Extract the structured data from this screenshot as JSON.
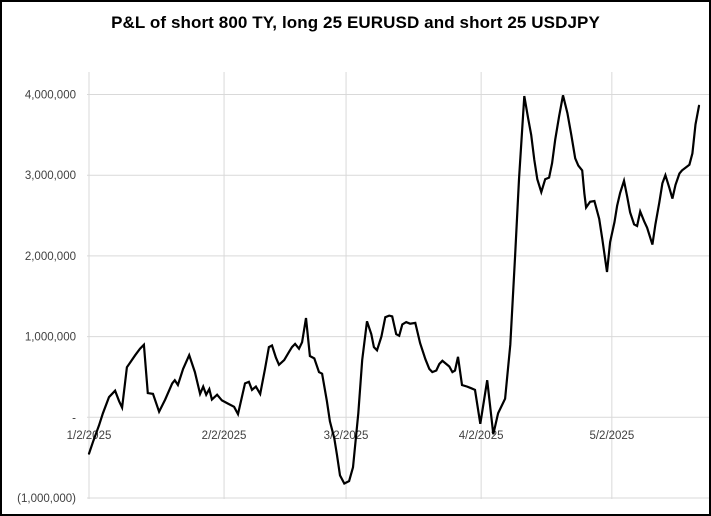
{
  "chart_data": {
    "type": "line",
    "title": "P&L of short 800 TY, long 25 EURUSD and short 25 USDJPY",
    "legend": "none",
    "grid": "on",
    "value_unit": "USD (point values stored in millions)",
    "x_unit": "calendar days since 1/2/2025",
    "x_range_days": [
      0,
      140
    ],
    "ylim": [
      -1000000,
      4000000
    ],
    "y_ticks": [
      {
        "label": "4,000,000",
        "value": 4
      },
      {
        "label": "3,000,000",
        "value": 3
      },
      {
        "label": "2,000,000",
        "value": 2
      },
      {
        "label": "1,000,000",
        "value": 1
      },
      {
        "label": "-",
        "value": 0
      },
      {
        "label": "(1,000,000)",
        "value": -1
      }
    ],
    "x_ticks": [
      {
        "label": "1/2/2025",
        "day": 0
      },
      {
        "label": "2/2/2025",
        "day": 31
      },
      {
        "label": "3/2/2025",
        "day": 59
      },
      {
        "label": "4/2/2025",
        "day": 90
      },
      {
        "label": "5/2/2025",
        "day": 120
      }
    ],
    "points": [
      [
        0,
        -0.45
      ],
      [
        1,
        -0.29
      ],
      [
        2.3,
        -0.1
      ],
      [
        3.2,
        0.05
      ],
      [
        4.6,
        0.25
      ],
      [
        6,
        0.33
      ],
      [
        6.9,
        0.2
      ],
      [
        7.6,
        0.12
      ],
      [
        8.7,
        0.62
      ],
      [
        10.6,
        0.77
      ],
      [
        11.7,
        0.85
      ],
      [
        12.6,
        0.9
      ],
      [
        13.5,
        0.3
      ],
      [
        14.7,
        0.29
      ],
      [
        16.1,
        0.07
      ],
      [
        17.5,
        0.22
      ],
      [
        19.1,
        0.42
      ],
      [
        19.7,
        0.46
      ],
      [
        20.4,
        0.4
      ],
      [
        21.6,
        0.6
      ],
      [
        23,
        0.77
      ],
      [
        24.3,
        0.56
      ],
      [
        25.5,
        0.29
      ],
      [
        26.2,
        0.38
      ],
      [
        26.9,
        0.28
      ],
      [
        27.6,
        0.35
      ],
      [
        28.2,
        0.22
      ],
      [
        29.4,
        0.28
      ],
      [
        30.5,
        0.21
      ],
      [
        31.9,
        0.17
      ],
      [
        33.3,
        0.13
      ],
      [
        34.2,
        0.04
      ],
      [
        35.8,
        0.42
      ],
      [
        36.7,
        0.44
      ],
      [
        37.4,
        0.34
      ],
      [
        38.3,
        0.38
      ],
      [
        39.3,
        0.29
      ],
      [
        40.4,
        0.6
      ],
      [
        41.3,
        0.87
      ],
      [
        42,
        0.89
      ],
      [
        42.9,
        0.74
      ],
      [
        43.6,
        0.65
      ],
      [
        44.8,
        0.71
      ],
      [
        45.9,
        0.81
      ],
      [
        46.6,
        0.87
      ],
      [
        47.3,
        0.91
      ],
      [
        48.2,
        0.85
      ],
      [
        48.9,
        0.93
      ],
      [
        49.8,
        1.23
      ],
      [
        50.7,
        0.76
      ],
      [
        51.7,
        0.73
      ],
      [
        52.8,
        0.56
      ],
      [
        53.5,
        0.54
      ],
      [
        54.6,
        0.2
      ],
      [
        55.3,
        -0.05
      ],
      [
        56.3,
        -0.26
      ],
      [
        56.9,
        -0.46
      ],
      [
        57.6,
        -0.72
      ],
      [
        58.6,
        -0.82
      ],
      [
        59.7,
        -0.79
      ],
      [
        60.6,
        -0.62
      ],
      [
        61.8,
        0.05
      ],
      [
        62.7,
        0.71
      ],
      [
        63.8,
        1.19
      ],
      [
        64.8,
        1.03
      ],
      [
        65.4,
        0.87
      ],
      [
        66.1,
        0.83
      ],
      [
        67.1,
        1.0
      ],
      [
        68,
        1.24
      ],
      [
        68.9,
        1.26
      ],
      [
        69.6,
        1.25
      ],
      [
        70.5,
        1.03
      ],
      [
        71.2,
        1.01
      ],
      [
        71.9,
        1.15
      ],
      [
        72.8,
        1.18
      ],
      [
        73.7,
        1.16
      ],
      [
        74.9,
        1.17
      ],
      [
        76,
        0.92
      ],
      [
        77.2,
        0.72
      ],
      [
        78.1,
        0.6
      ],
      [
        78.8,
        0.56
      ],
      [
        79.7,
        0.58
      ],
      [
        80.4,
        0.66
      ],
      [
        81.1,
        0.7
      ],
      [
        82,
        0.66
      ],
      [
        82.7,
        0.63
      ],
      [
        83.4,
        0.56
      ],
      [
        84,
        0.58
      ],
      [
        84.7,
        0.75
      ],
      [
        85.6,
        0.4
      ],
      [
        86.8,
        0.38
      ],
      [
        87.7,
        0.36
      ],
      [
        88.6,
        0.34
      ],
      [
        89.8,
        -0.08
      ],
      [
        91.4,
        0.46
      ],
      [
        92.8,
        -0.21
      ],
      [
        93.9,
        0.05
      ],
      [
        95.5,
        0.23
      ],
      [
        96.7,
        0.9
      ],
      [
        97.8,
        2.0
      ],
      [
        98.7,
        2.95
      ],
      [
        99.9,
        3.98
      ],
      [
        100.8,
        3.7
      ],
      [
        101.5,
        3.5
      ],
      [
        102.2,
        3.19
      ],
      [
        102.9,
        2.95
      ],
      [
        103.8,
        2.79
      ],
      [
        104.7,
        2.95
      ],
      [
        105.6,
        2.97
      ],
      [
        106.3,
        3.15
      ],
      [
        107,
        3.44
      ],
      [
        107.9,
        3.73
      ],
      [
        108.8,
        3.99
      ],
      [
        109.8,
        3.77
      ],
      [
        110.7,
        3.5
      ],
      [
        111.6,
        3.21
      ],
      [
        112.3,
        3.12
      ],
      [
        113.2,
        3.06
      ],
      [
        113.7,
        2.77
      ],
      [
        114.1,
        2.6
      ],
      [
        115,
        2.67
      ],
      [
        116,
        2.68
      ],
      [
        117.1,
        2.46
      ],
      [
        117.8,
        2.21
      ],
      [
        118.9,
        1.8
      ],
      [
        119.6,
        2.17
      ],
      [
        120.6,
        2.42
      ],
      [
        121.2,
        2.62
      ],
      [
        121.9,
        2.78
      ],
      [
        122.8,
        2.93
      ],
      [
        123.5,
        2.74
      ],
      [
        124.2,
        2.54
      ],
      [
        125.1,
        2.39
      ],
      [
        125.8,
        2.37
      ],
      [
        126.5,
        2.55
      ],
      [
        127.4,
        2.43
      ],
      [
        128.1,
        2.35
      ],
      [
        129.3,
        2.14
      ],
      [
        130,
        2.39
      ],
      [
        130.9,
        2.66
      ],
      [
        131.6,
        2.9
      ],
      [
        132.3,
        3.0
      ],
      [
        133.2,
        2.84
      ],
      [
        133.9,
        2.71
      ],
      [
        134.6,
        2.88
      ],
      [
        135.5,
        3.02
      ],
      [
        136.1,
        3.06
      ],
      [
        137.1,
        3.1
      ],
      [
        137.8,
        3.13
      ],
      [
        138.5,
        3.27
      ],
      [
        139.2,
        3.63
      ],
      [
        140,
        3.86
      ]
    ],
    "colors": {
      "line": "#000000",
      "grid": "#d9d9d9",
      "tick_label": "#404040",
      "title": "#1f1f1f",
      "background": "#ffffff",
      "border": "#000000"
    }
  }
}
